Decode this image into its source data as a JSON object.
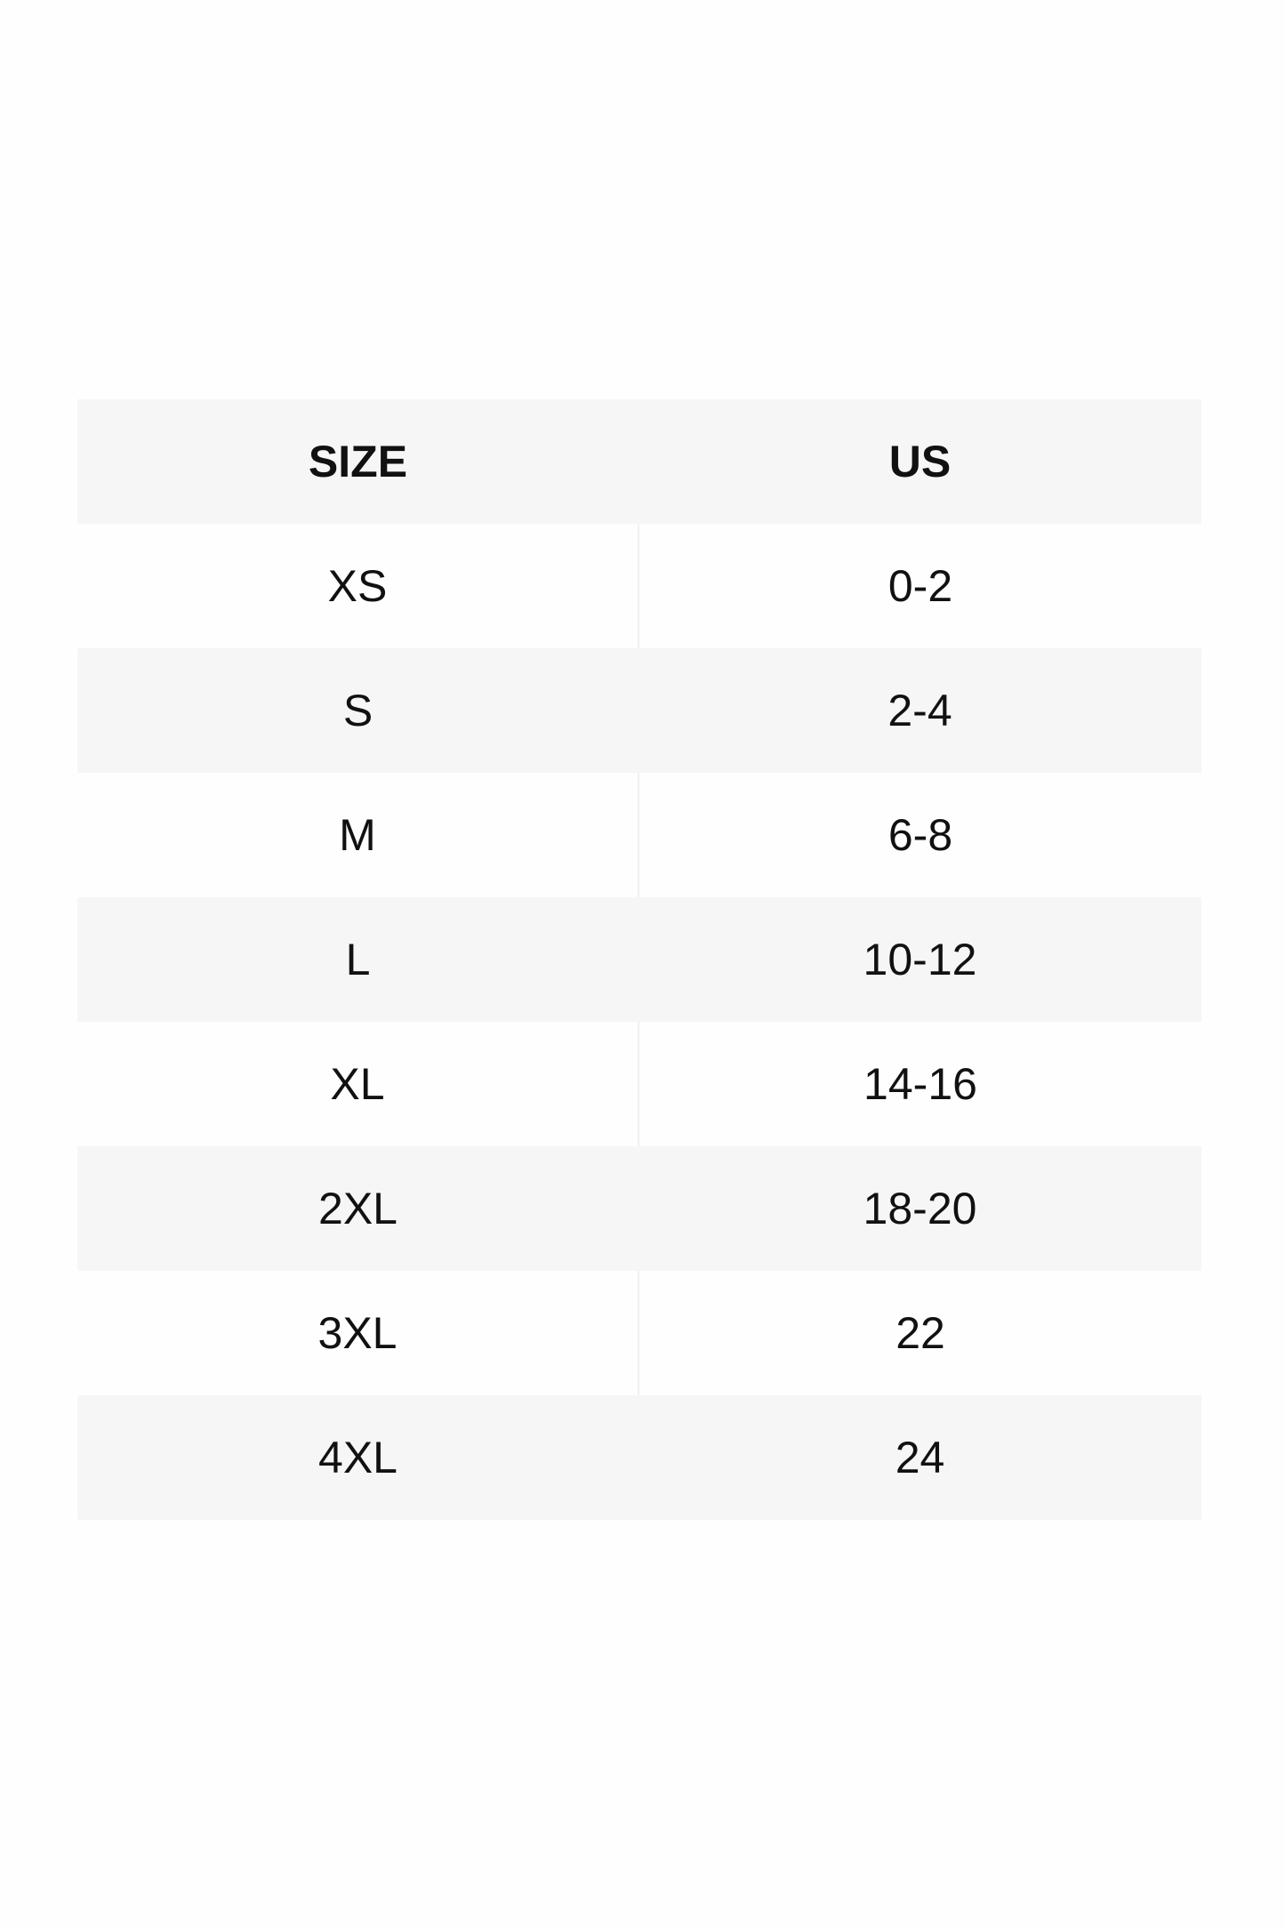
{
  "table": {
    "header": [
      "SIZE",
      "US"
    ],
    "rows": [
      [
        "XS",
        "0-2"
      ],
      [
        "S",
        "2-4"
      ],
      [
        "M",
        "6-8"
      ],
      [
        "L",
        "10-12"
      ],
      [
        "XL",
        "14-16"
      ],
      [
        "2XL",
        "18-20"
      ],
      [
        "3XL",
        "22"
      ],
      [
        "4XL",
        "24"
      ]
    ]
  }
}
